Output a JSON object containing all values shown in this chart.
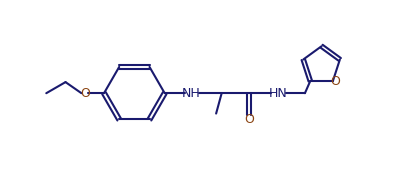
{
  "bg_color": "#ffffff",
  "bond_color": "#1a1a6e",
  "o_color": "#8B4513",
  "line_width": 1.5,
  "figsize": [
    4.13,
    1.79
  ],
  "dpi": 100,
  "xlim": [
    0,
    10.5
  ],
  "ylim": [
    0,
    4.8
  ]
}
